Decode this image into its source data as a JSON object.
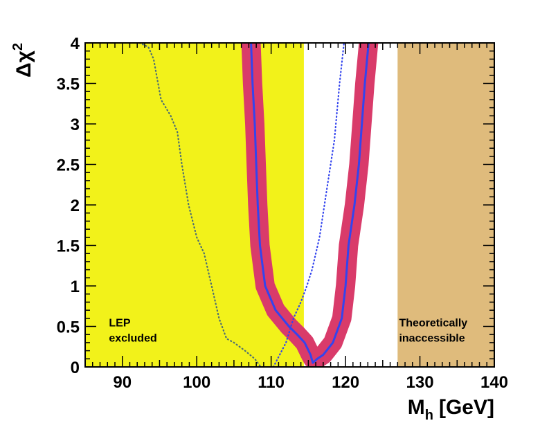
{
  "chart_data": {
    "type": "line",
    "title": "",
    "xlabel": "M",
    "xlabel_sub": "h",
    "xlabel_unit": "[GeV]",
    "ylabel": "Δχ",
    "ylabel_sup": "2",
    "xlim": [
      85,
      140
    ],
    "ylim": [
      0,
      4
    ],
    "xticks": [
      90,
      100,
      110,
      120,
      130,
      140
    ],
    "xtick_labels": [
      "90",
      "100",
      "110",
      "120",
      "130",
      "140"
    ],
    "yticks": [
      0,
      0.5,
      1,
      1.5,
      2,
      2.5,
      3,
      3.5,
      4
    ],
    "ytick_labels": [
      "0",
      "0.5",
      "1",
      "1.5",
      "2",
      "2.5",
      "3",
      "3.5",
      "4"
    ],
    "regions": [
      {
        "name": "lep-excluded-region",
        "x_from": 85,
        "x_to": 114.4,
        "color": "#f2f21a",
        "label": [
          "LEP",
          "excluded"
        ],
        "label_anchor": [
          88.2,
          0.5
        ]
      },
      {
        "name": "theoretically-inaccessible-region",
        "x_from": 127,
        "x_to": 140,
        "color": "#dfbb7c",
        "label": [
          "Theoretically",
          "inaccessible"
        ],
        "label_anchor": [
          127.2,
          0.5
        ]
      }
    ],
    "series": [
      {
        "name": "fit-uncertainty-band",
        "style": "band",
        "color": "#d93b6a",
        "points": [
          [
            107.3,
            4.0
          ],
          [
            107.5,
            3.5
          ],
          [
            107.8,
            3.0
          ],
          [
            108.0,
            2.5
          ],
          [
            108.2,
            2.0
          ],
          [
            108.5,
            1.5
          ],
          [
            109.2,
            1.0
          ],
          [
            110.6,
            0.7
          ],
          [
            112.4,
            0.5
          ],
          [
            113.5,
            0.4
          ],
          [
            114.5,
            0.3
          ],
          [
            115.3,
            0.15
          ],
          [
            115.6,
            0.1
          ],
          [
            116.2,
            0.1
          ],
          [
            117.0,
            0.15
          ],
          [
            118.3,
            0.3
          ],
          [
            119.5,
            0.6
          ],
          [
            120.0,
            1.0
          ],
          [
            120.4,
            1.5
          ],
          [
            121.2,
            2.0
          ],
          [
            121.8,
            2.5
          ],
          [
            122.2,
            3.0
          ],
          [
            122.6,
            3.5
          ],
          [
            123.1,
            4.0
          ]
        ],
        "half_width": 1.3
      },
      {
        "name": "best-fit-curve",
        "style": "solid",
        "color": "#3344ee",
        "points": [
          [
            107.3,
            4.0
          ],
          [
            107.5,
            3.5
          ],
          [
            107.8,
            3.0
          ],
          [
            108.0,
            2.5
          ],
          [
            108.2,
            2.0
          ],
          [
            108.5,
            1.5
          ],
          [
            109.2,
            1.0
          ],
          [
            110.6,
            0.7
          ],
          [
            112.4,
            0.5
          ],
          [
            113.5,
            0.4
          ],
          [
            114.5,
            0.3
          ],
          [
            115.3,
            0.15
          ],
          [
            115.6,
            0.05
          ],
          [
            116.2,
            0.1
          ],
          [
            117.0,
            0.15
          ],
          [
            118.3,
            0.3
          ],
          [
            119.5,
            0.6
          ],
          [
            120.0,
            1.0
          ],
          [
            120.4,
            1.5
          ],
          [
            121.2,
            2.0
          ],
          [
            121.8,
            2.5
          ],
          [
            122.2,
            3.0
          ],
          [
            122.6,
            3.5
          ],
          [
            123.1,
            4.0
          ]
        ]
      },
      {
        "name": "dotted-curve-left",
        "style": "dotted",
        "color": "#4d6e73",
        "points": [
          [
            92.3,
            4.0
          ],
          [
            93.5,
            3.95
          ],
          [
            94.2,
            3.8
          ],
          [
            94.8,
            3.5
          ],
          [
            95.2,
            3.3
          ],
          [
            96.5,
            3.1
          ],
          [
            97.4,
            2.9
          ],
          [
            98.0,
            2.5
          ],
          [
            98.9,
            2.0
          ],
          [
            100.0,
            1.6
          ],
          [
            101.0,
            1.4
          ],
          [
            102.0,
            1.0
          ],
          [
            103.0,
            0.6
          ],
          [
            104.0,
            0.35
          ],
          [
            105.0,
            0.3
          ],
          [
            106.5,
            0.2
          ],
          [
            107.8,
            0.1
          ],
          [
            108.6,
            0.0
          ]
        ]
      },
      {
        "name": "dotted-curve-right",
        "style": "dotted",
        "color": "#3344ee",
        "points": [
          [
            110.3,
            0.0
          ],
          [
            112.0,
            0.3
          ],
          [
            113.0,
            0.6
          ],
          [
            114.0,
            0.8
          ],
          [
            114.8,
            1.0
          ],
          [
            115.5,
            1.2
          ],
          [
            116.5,
            1.6
          ],
          [
            117.5,
            2.2
          ],
          [
            118.5,
            2.8
          ],
          [
            119.2,
            3.5
          ],
          [
            119.8,
            4.0
          ]
        ]
      }
    ]
  }
}
